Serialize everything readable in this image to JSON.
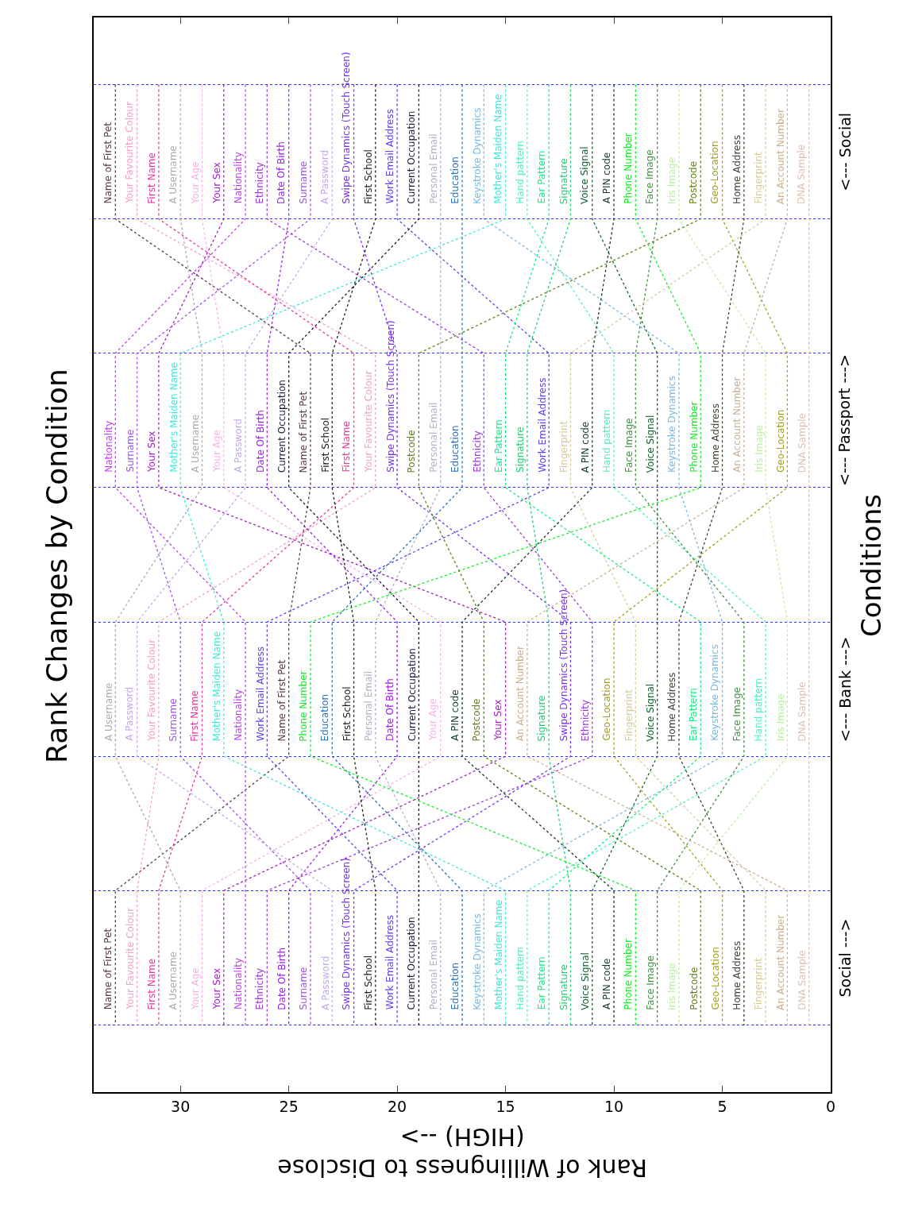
{
  "chart_data": {
    "type": "line",
    "title": "Rank Changes by Condition",
    "xlabel": "Rank of Willingness to Disclose\n(HIGH) -->",
    "ylabel": "Conditions",
    "orientation": "horizontal",
    "categories": [
      null,
      null,
      null,
      null,
      null,
      null,
      null,
      null
    ],
    "annotations": [
      "Social --->",
      "<--- Bank --->",
      "<--- Passport --->",
      "<--- Social"
    ],
    "xlim": [
      34,
      0
    ],
    "xticks": [
      0,
      5,
      10,
      15,
      20,
      25,
      30
    ],
    "line_style": "dotted",
    "marker": "none",
    "grid": "y",
    "series": [
      {
        "name": "Name of First Pet",
        "color": "#5a3a46",
        "values": [
          33,
          33,
          24,
          24,
          25,
          25,
          33,
          33
        ]
      },
      {
        "name": "Your Favourite Colour",
        "color": "#f5a0c8",
        "values": [
          32,
          32,
          21,
          21,
          31,
          31,
          32,
          32
        ]
      },
      {
        "name": "First Name",
        "color": "#e8389a",
        "values": [
          31,
          31,
          22,
          22,
          29,
          29,
          31,
          31
        ]
      },
      {
        "name": "A Username",
        "color": "#b0a8b0",
        "values": [
          30,
          30,
          29,
          29,
          33,
          33,
          30,
          30
        ]
      },
      {
        "name": "Your Age",
        "color": "#f8b0e8",
        "values": [
          29,
          29,
          28,
          28,
          18,
          18,
          29,
          29
        ]
      },
      {
        "name": "Your Sex",
        "color": "#a020c0",
        "values": [
          28,
          28,
          31,
          31,
          15,
          15,
          28,
          28
        ]
      },
      {
        "name": "Nationality",
        "color": "#c040f0",
        "values": [
          27,
          27,
          33,
          33,
          27,
          27,
          27,
          27
        ]
      },
      {
        "name": "Ethnicity",
        "color": "#9a3ad8",
        "values": [
          26,
          26,
          16,
          16,
          11,
          11,
          26,
          26
        ]
      },
      {
        "name": "Date Of Birth",
        "color": "#9a20e8",
        "values": [
          25,
          25,
          26,
          26,
          20,
          20,
          25,
          25
        ]
      },
      {
        "name": "Surname",
        "color": "#a050f0",
        "values": [
          24,
          24,
          32,
          32,
          30,
          30,
          24,
          24
        ]
      },
      {
        "name": "A Password",
        "color": "#c4a8ec",
        "values": [
          23,
          23,
          27,
          27,
          32,
          32,
          23,
          23
        ]
      },
      {
        "name": "Swipe Dynamics (Touch Screen)",
        "color": "#7a30f0",
        "values": [
          22,
          22,
          20,
          20,
          12,
          12,
          22,
          22
        ]
      },
      {
        "name": "First School",
        "color": "#202020",
        "values": [
          21,
          21,
          23,
          23,
          22,
          22,
          21,
          21
        ]
      },
      {
        "name": "Work Email Address",
        "color": "#5a40f0",
        "values": [
          20,
          20,
          13,
          13,
          26,
          26,
          20,
          20
        ]
      },
      {
        "name": "Current Occupation",
        "color": "#201838",
        "values": [
          19,
          19,
          25,
          25,
          19,
          19,
          19,
          19
        ]
      },
      {
        "name": "Personal Email",
        "color": "#b0b0c8",
        "values": [
          18,
          18,
          18,
          18,
          21,
          21,
          18,
          18
        ]
      },
      {
        "name": "Education",
        "color": "#2a70b8",
        "values": [
          17,
          17,
          17,
          17,
          23,
          23,
          17,
          17
        ]
      },
      {
        "name": "Keystroke Dynamics",
        "color": "#78b8e0",
        "values": [
          16,
          16,
          7,
          7,
          5,
          5,
          16,
          16
        ]
      },
      {
        "name": "Mother's Maiden Name",
        "color": "#40e8d8",
        "values": [
          15,
          15,
          30,
          30,
          28,
          28,
          15,
          15
        ]
      },
      {
        "name": "Hand pattern",
        "color": "#50f0c0",
        "values": [
          14,
          14,
          10,
          10,
          3,
          3,
          14,
          14
        ]
      },
      {
        "name": "Ear Pattern",
        "color": "#10f080",
        "values": [
          13,
          13,
          15,
          15,
          6,
          6,
          13,
          13
        ]
      },
      {
        "name": "Signature",
        "color": "#20d070",
        "values": [
          12,
          12,
          14,
          14,
          13,
          13,
          12,
          12
        ]
      },
      {
        "name": "Voice Signal",
        "color": "#106030",
        "values": [
          11,
          11,
          8,
          8,
          8,
          8,
          11,
          11
        ]
      },
      {
        "name": "A PIN code",
        "color": "#103828",
        "values": [
          10,
          10,
          11,
          11,
          17,
          17,
          10,
          10
        ]
      },
      {
        "name": "Phone Number",
        "color": "#10f020",
        "values": [
          9,
          9,
          6,
          6,
          24,
          24,
          9,
          9
        ]
      },
      {
        "name": "Face Image",
        "color": "#409040",
        "values": [
          8,
          8,
          9,
          9,
          4,
          4,
          8,
          8
        ]
      },
      {
        "name": "Iris Image",
        "color": "#b8f0a0",
        "values": [
          7,
          7,
          3,
          3,
          2,
          2,
          7,
          7
        ]
      },
      {
        "name": "Postcode",
        "color": "#608018",
        "values": [
          6,
          6,
          19,
          19,
          16,
          16,
          6,
          6
        ]
      },
      {
        "name": "Geo-Location",
        "color": "#a0a020",
        "values": [
          5,
          5,
          2,
          2,
          10,
          10,
          5,
          5
        ]
      },
      {
        "name": "Home Address",
        "color": "#404030",
        "values": [
          4,
          4,
          5,
          5,
          7,
          7,
          4,
          4
        ]
      },
      {
        "name": "Fingerprint",
        "color": "#d4cc98",
        "values": [
          3,
          3,
          12,
          12,
          9,
          9,
          3,
          3
        ]
      },
      {
        "name": "An Account Number",
        "color": "#c8b090",
        "values": [
          2,
          2,
          4,
          4,
          14,
          14,
          2,
          2
        ]
      },
      {
        "name": "DNA Sample",
        "color": "#e0c0b0",
        "values": [
          1,
          1,
          1,
          1,
          1,
          1,
          1,
          1
        ]
      }
    ]
  }
}
